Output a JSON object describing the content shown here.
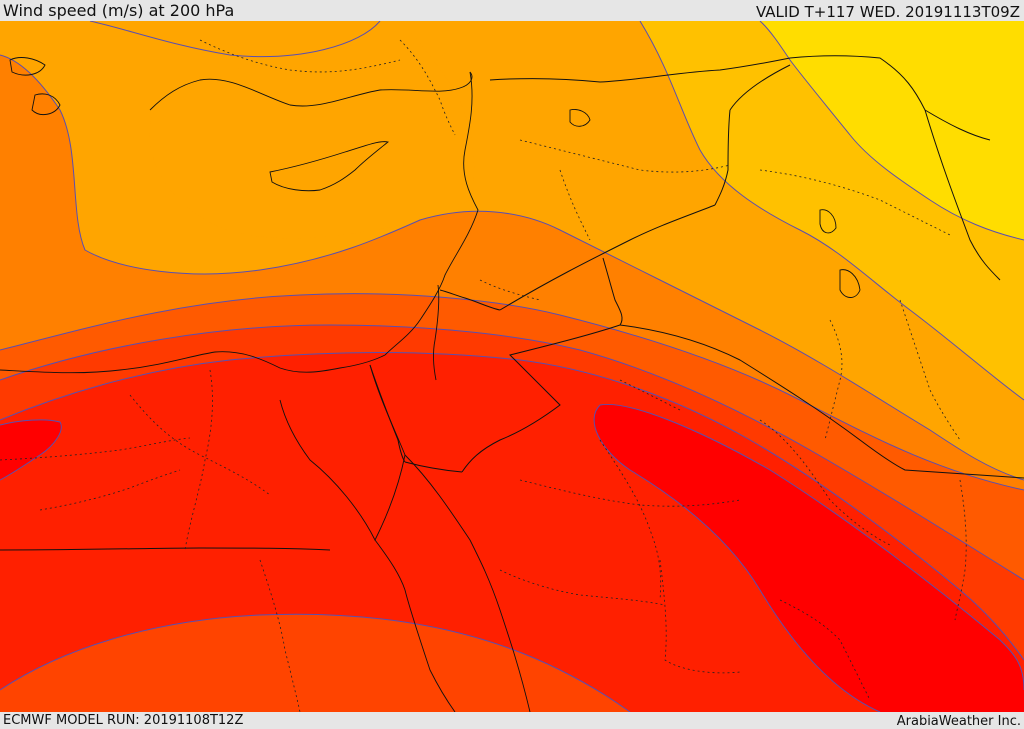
{
  "header": {
    "title": "Wind speed (m/s) at 200 hPa",
    "valid_time": "VALID T+117 WED. 20191113T09Z"
  },
  "footer": {
    "model_run": "ECMWF MODEL RUN: 20191108T12Z",
    "credit": "ArabiaWeather Inc."
  },
  "palette": {
    "band_yellow": "#ffdd00",
    "band_gold": "#ffc100",
    "band_amber": "#ffa500",
    "band_orange": "#ff8000",
    "band_dark_orange": "#ff5a00",
    "band_red_orange": "#ff3a00",
    "band_red": "#ff2000",
    "band_core_red": "#ff0000",
    "contour_line": "#5a4fb0",
    "border_line": "#111111"
  }
}
